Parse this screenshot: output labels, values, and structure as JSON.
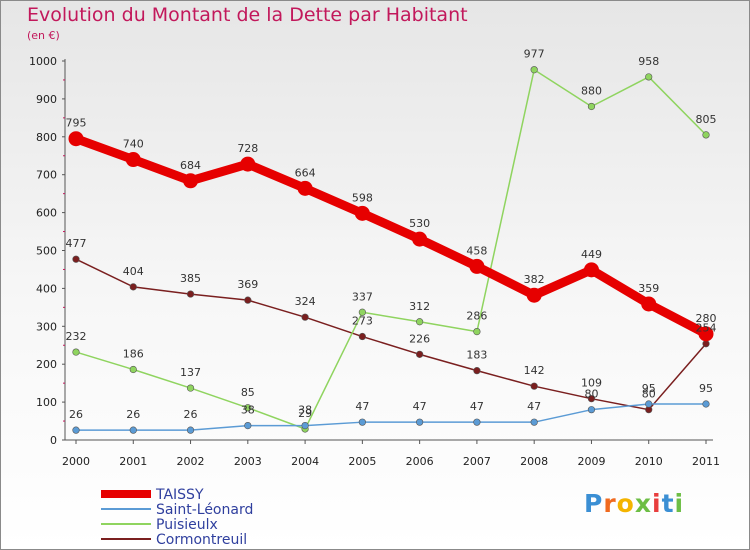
{
  "header": {
    "title": "Evolution du Montant de la Dette par Habitant",
    "unit": "(en €)"
  },
  "logo": {
    "text": "Proxiti",
    "colors": [
      "#3b8fd4",
      "#f06a1f",
      "#f4b400",
      "#6dbe45",
      "#e83e3e",
      "#3b8fd4",
      "#6dbe45"
    ]
  },
  "chart_data": {
    "type": "line",
    "x": [
      "2000",
      "2001",
      "2002",
      "2003",
      "2004",
      "2005",
      "2006",
      "2007",
      "2008",
      "2009",
      "2010",
      "2011"
    ],
    "ylim": [
      0,
      1000
    ],
    "yticks": [
      0,
      100,
      200,
      300,
      400,
      500,
      600,
      700,
      800,
      900,
      1000
    ],
    "grid": false,
    "legend_position": "bottom-left",
    "series": [
      {
        "name": "TAISSY",
        "color": "#e60000",
        "labels": [
          "795",
          "740",
          "684",
          "728",
          "664",
          "598",
          "530",
          "458",
          "382",
          "449",
          "359",
          "280"
        ],
        "values": [
          795,
          740,
          684,
          728,
          664,
          598,
          530,
          458,
          382,
          449,
          359,
          280
        ]
      },
      {
        "name": "Saint-Léonard",
        "color": "#5b9bd5",
        "labels": [
          "26",
          "26",
          "26",
          "38",
          "38",
          "47",
          "47",
          "47",
          "47",
          "80",
          "95",
          "95"
        ],
        "values": [
          26,
          26,
          26,
          38,
          38,
          47,
          47,
          47,
          47,
          80,
          95,
          95
        ]
      },
      {
        "name": "Puisieulx",
        "color": "#8fd45f",
        "labels": [
          "232",
          "186",
          "137",
          "85",
          "29",
          "337",
          "312",
          "286",
          "977",
          "880",
          "958",
          "805"
        ],
        "values": [
          232,
          186,
          137,
          85,
          29,
          337,
          312,
          286,
          977,
          880,
          958,
          805
        ]
      },
      {
        "name": "Cormontreuil",
        "color": "#7a1f1f",
        "labels": [
          "477",
          "404",
          "385",
          "369",
          "324",
          "273",
          "226",
          "183",
          "142",
          "109",
          "80",
          "254"
        ],
        "values": [
          477,
          404,
          385,
          369,
          324,
          273,
          226,
          183,
          142,
          109,
          80,
          254
        ]
      }
    ]
  }
}
